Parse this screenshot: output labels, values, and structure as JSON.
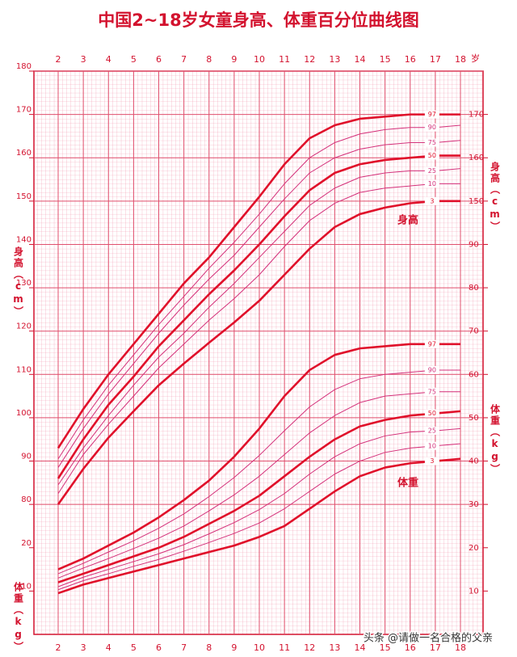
{
  "chart_data": {
    "type": "line",
    "title": "中国2~18岁女童身高、体重百分位曲线图",
    "x_unit": "岁",
    "y_label": "身高（cm）",
    "y2_label": "体重（kg）",
    "annotations": [
      "身高",
      "体重"
    ],
    "watermark": "头条 @请做一名合格的父亲",
    "x": [
      2,
      3,
      4,
      5,
      6,
      7,
      8,
      9,
      10,
      11,
      12,
      13,
      14,
      15,
      16,
      17,
      18
    ],
    "xlim": [
      2,
      18
    ],
    "xticks": [
      2,
      3,
      4,
      5,
      6,
      7,
      8,
      9,
      10,
      11,
      12,
      13,
      14,
      15,
      16,
      17,
      18
    ],
    "ylim": [
      50,
      180
    ],
    "yticks": [
      80,
      90,
      100,
      110,
      120,
      130,
      140,
      150,
      160,
      170,
      180
    ],
    "yticks_right": [
      150,
      160,
      170
    ],
    "y2lim": [
      0,
      130
    ],
    "y2ticks": [
      10,
      20,
      30,
      40,
      50,
      60,
      70,
      80,
      90
    ],
    "y2ticks_left": [
      10,
      20
    ],
    "grid": true,
    "series": [
      {
        "name": "97",
        "color": "#e0102a",
        "width": 2.6,
        "values": [
          93,
          102,
          110,
          117,
          124,
          131,
          137,
          144,
          151,
          158.5,
          164.5,
          167.5,
          169,
          169.5,
          170,
          170,
          170
        ]
      },
      {
        "name": "90",
        "color": "#d4307a",
        "width": 1,
        "values": [
          90.5,
          99.5,
          107.5,
          114.5,
          121.5,
          128,
          134.5,
          140.5,
          147,
          154,
          160,
          163.5,
          165.5,
          166.5,
          167,
          167,
          167.5
        ]
      },
      {
        "name": "75",
        "color": "#d4307a",
        "width": 1,
        "values": [
          88.5,
          97.5,
          105.5,
          112.5,
          119.5,
          126,
          132,
          137.5,
          144,
          150.5,
          156.5,
          160,
          162,
          163,
          163.5,
          163.5,
          164
        ]
      },
      {
        "name": "50",
        "color": "#e0102a",
        "width": 2.6,
        "values": [
          86,
          95,
          103,
          109.5,
          116.5,
          122.5,
          128.5,
          134,
          140,
          146.5,
          152.5,
          156.5,
          158.5,
          159.5,
          160,
          160.5,
          160.5
        ]
      },
      {
        "name": "25",
        "color": "#d4307a",
        "width": 1,
        "values": [
          84.5,
          93,
          100.5,
          107.5,
          114,
          119.5,
          125.5,
          131,
          137,
          143,
          149,
          153,
          155.5,
          156.5,
          157,
          157,
          157.5
        ]
      },
      {
        "name": "10",
        "color": "#d4307a",
        "width": 1,
        "values": [
          82.5,
          91.5,
          98.5,
          105,
          111.5,
          117,
          122.5,
          127.5,
          133,
          139.5,
          145.5,
          149.5,
          152,
          153,
          153.5,
          154,
          154
        ]
      },
      {
        "name": "3",
        "color": "#e0102a",
        "width": 2.6,
        "values": [
          80,
          88.2,
          95.4,
          101.5,
          107.5,
          112.5,
          117.3,
          122,
          127,
          133,
          139,
          144,
          147,
          148.5,
          149.5,
          150,
          150
        ]
      },
      {
        "name": "97",
        "color": "#e0102a",
        "width": 2.6,
        "axis": "y2",
        "values": [
          15,
          17.5,
          20.5,
          23.5,
          27,
          31,
          35.5,
          41,
          47.5,
          55,
          61,
          64.5,
          66,
          66.5,
          67,
          67,
          67
        ]
      },
      {
        "name": "90",
        "color": "#d4307a",
        "width": 1,
        "axis": "y2",
        "values": [
          14,
          16.4,
          19,
          21.6,
          24.5,
          27.8,
          31.8,
          36.2,
          41.3,
          47,
          52.5,
          56.5,
          59,
          60,
          60.5,
          61,
          61
        ]
      },
      {
        "name": "75",
        "color": "#d4307a",
        "width": 1,
        "axis": "y2",
        "values": [
          13,
          15.3,
          17.5,
          19.8,
          22.2,
          25,
          28.5,
          32.2,
          36.5,
          41.5,
          46.5,
          50.5,
          53.5,
          55,
          55.5,
          56,
          56
        ]
      },
      {
        "name": "50",
        "color": "#e0102a",
        "width": 2.6,
        "axis": "y2",
        "values": [
          12,
          14,
          16,
          18,
          20,
          22.5,
          25.5,
          28.5,
          32,
          36.5,
          41,
          45,
          48,
          49.5,
          50.5,
          51,
          51.5
        ]
      },
      {
        "name": "25",
        "color": "#d4307a",
        "width": 1,
        "axis": "y2",
        "values": [
          11,
          13.2,
          15,
          16.8,
          18.6,
          20.7,
          23.2,
          25.8,
          28.8,
          32.5,
          37,
          41,
          44,
          45.8,
          46.7,
          47,
          47.5
        ]
      },
      {
        "name": "10",
        "color": "#d4307a",
        "width": 1,
        "axis": "y2",
        "values": [
          10.3,
          12.4,
          14,
          15.7,
          17.3,
          19.2,
          21.2,
          23.3,
          25.7,
          29,
          33,
          37,
          40,
          42,
          43,
          43.5,
          44
        ]
      },
      {
        "name": "3",
        "color": "#e0102a",
        "width": 2.6,
        "axis": "y2",
        "values": [
          9.5,
          11.5,
          13,
          14.5,
          16,
          17.5,
          19,
          20.5,
          22.5,
          25,
          29,
          33,
          36.5,
          38.5,
          39.5,
          40,
          40.5
        ]
      }
    ]
  }
}
